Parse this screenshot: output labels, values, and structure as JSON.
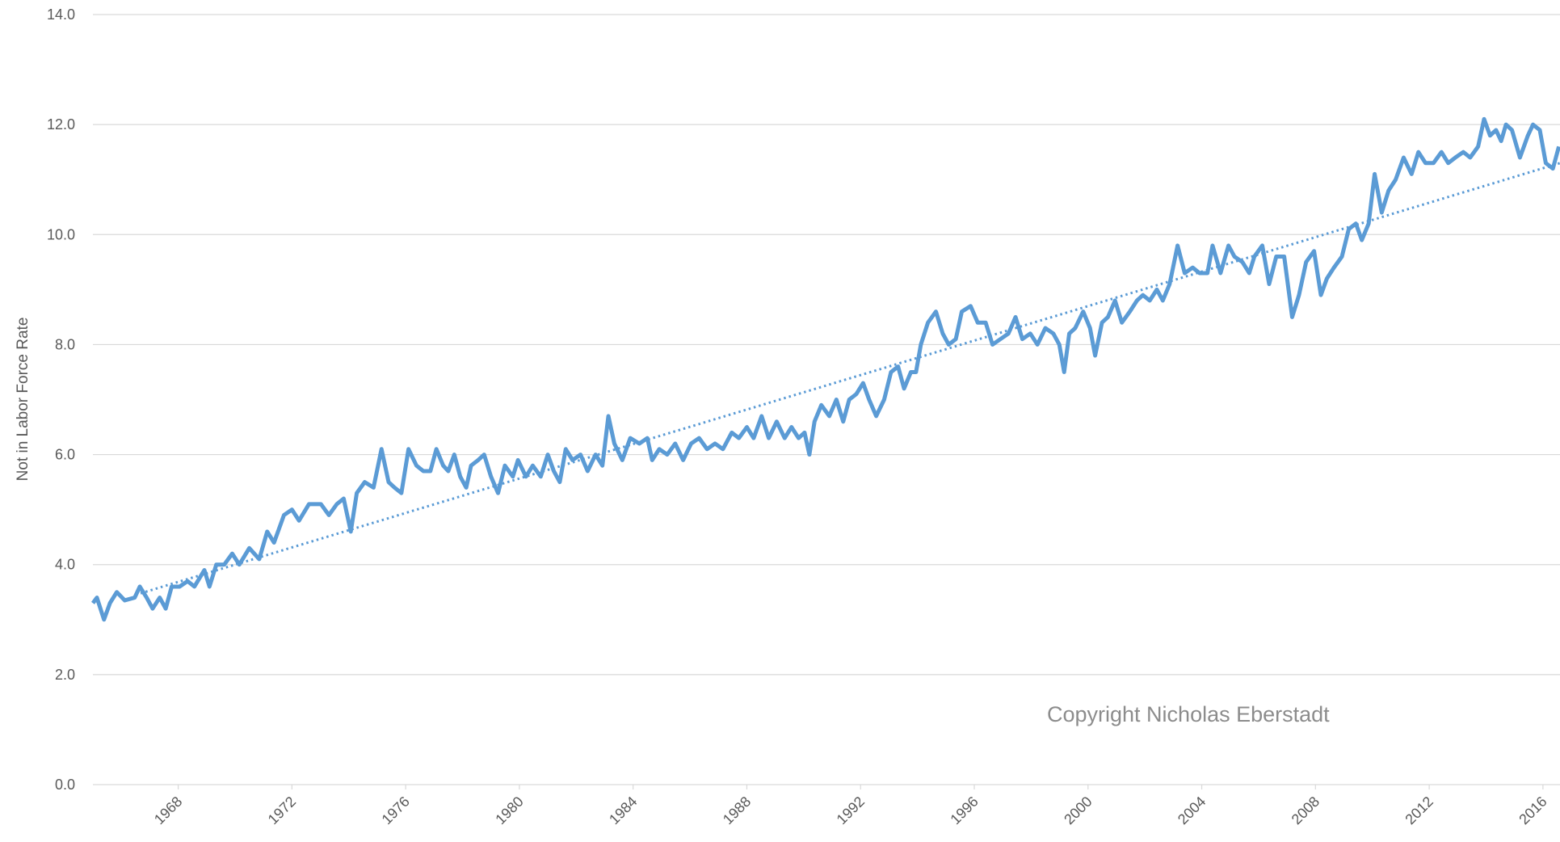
{
  "chart_data": {
    "type": "line",
    "y_label": "Not in Labor Force Rate",
    "annotation": "Copyright Nicholas Eberstadt",
    "xlim": [
      1965,
      2016.6
    ],
    "xticks": [
      1968,
      1972,
      1976,
      1980,
      1984,
      1988,
      1992,
      1996,
      2000,
      2004,
      2008,
      2012,
      2016
    ],
    "ylim": [
      0,
      14
    ],
    "yticks": [
      {
        "value": 0,
        "label": "0.0"
      },
      {
        "value": 2,
        "label": "2.0"
      },
      {
        "value": 4,
        "label": "4.0"
      },
      {
        "value": 6,
        "label": "6.0"
      },
      {
        "value": 8,
        "label": "8.0"
      },
      {
        "value": 10,
        "label": "10.0"
      },
      {
        "value": 12,
        "label": "12.0"
      },
      {
        "value": 14,
        "label": "14.0"
      }
    ],
    "grid": true,
    "series": [
      {
        "color": "#5b9bd5",
        "style": "solid",
        "x": [
          1965.0,
          1965.14,
          1965.39,
          1965.6,
          1965.84,
          1966.12,
          1966.47,
          1966.65,
          1966.89,
          1967.1,
          1967.35,
          1967.56,
          1967.77,
          1968.05,
          1968.33,
          1968.57,
          1968.92,
          1969.1,
          1969.34,
          1969.62,
          1969.9,
          1970.15,
          1970.5,
          1970.85,
          1971.13,
          1971.37,
          1971.72,
          1972.0,
          1972.25,
          1972.6,
          1973.02,
          1973.3,
          1973.58,
          1973.82,
          1974.07,
          1974.28,
          1974.56,
          1974.87,
          1975.15,
          1975.4,
          1975.61,
          1975.85,
          1976.1,
          1976.38,
          1976.62,
          1976.87,
          1977.08,
          1977.32,
          1977.5,
          1977.71,
          1977.92,
          1978.13,
          1978.3,
          1978.55,
          1978.76,
          1979.0,
          1979.25,
          1979.49,
          1979.77,
          1979.95,
          1980.23,
          1980.47,
          1980.75,
          1981.0,
          1981.21,
          1981.42,
          1981.63,
          1981.87,
          1982.15,
          1982.4,
          1982.68,
          1982.92,
          1983.13,
          1983.34,
          1983.62,
          1983.9,
          1984.22,
          1984.5,
          1984.67,
          1984.92,
          1985.2,
          1985.48,
          1985.76,
          1986.04,
          1986.32,
          1986.6,
          1986.88,
          1987.16,
          1987.47,
          1987.72,
          1988.0,
          1988.24,
          1988.52,
          1988.77,
          1989.05,
          1989.33,
          1989.57,
          1989.82,
          1990.03,
          1990.2,
          1990.38,
          1990.62,
          1990.9,
          1991.15,
          1991.39,
          1991.6,
          1991.85,
          1992.09,
          1992.3,
          1992.55,
          1992.83,
          1993.07,
          1993.32,
          1993.53,
          1993.77,
          1993.95,
          1994.12,
          1994.37,
          1994.65,
          1994.89,
          1995.1,
          1995.35,
          1995.56,
          1995.87,
          1996.12,
          1996.4,
          1996.64,
          1996.92,
          1997.2,
          1997.45,
          1997.69,
          1997.97,
          1998.22,
          1998.5,
          1998.78,
          1998.99,
          1999.16,
          1999.34,
          1999.55,
          1999.83,
          2000.07,
          2000.25,
          2000.49,
          2000.7,
          2000.95,
          2001.19,
          2001.47,
          2001.72,
          2001.93,
          2002.17,
          2002.42,
          2002.63,
          2002.87,
          2003.15,
          2003.4,
          2003.68,
          2003.92,
          2004.2,
          2004.38,
          2004.66,
          2004.94,
          2005.15,
          2005.43,
          2005.67,
          2005.85,
          2006.13,
          2006.37,
          2006.62,
          2006.9,
          2007.18,
          2007.42,
          2007.67,
          2007.95,
          2008.19,
          2008.4,
          2008.65,
          2008.93,
          2009.17,
          2009.42,
          2009.63,
          2009.87,
          2010.08,
          2010.33,
          2010.57,
          2010.82,
          2011.1,
          2011.38,
          2011.62,
          2011.87,
          2012.15,
          2012.43,
          2012.67,
          2012.92,
          2013.2,
          2013.44,
          2013.72,
          2013.93,
          2014.14,
          2014.35,
          2014.53,
          2014.7,
          2014.91,
          2015.19,
          2015.47,
          2015.65,
          2015.89,
          2016.1,
          2016.35,
          2016.56
        ],
        "values": [
          3.3,
          3.4,
          3.0,
          3.3,
          3.5,
          3.35,
          3.4,
          3.6,
          3.4,
          3.2,
          3.4,
          3.2,
          3.6,
          3.6,
          3.7,
          3.6,
          3.9,
          3.6,
          4.0,
          4.0,
          4.2,
          4.0,
          4.3,
          4.1,
          4.6,
          4.4,
          4.9,
          5.0,
          4.8,
          5.1,
          5.1,
          4.9,
          5.1,
          5.2,
          4.6,
          5.3,
          5.5,
          5.4,
          6.1,
          5.5,
          5.4,
          5.3,
          6.1,
          5.8,
          5.7,
          5.7,
          6.1,
          5.8,
          5.7,
          6.0,
          5.6,
          5.4,
          5.8,
          5.9,
          6.0,
          5.6,
          5.3,
          5.8,
          5.6,
          5.9,
          5.6,
          5.8,
          5.6,
          6.0,
          5.7,
          5.5,
          6.1,
          5.9,
          6.0,
          5.7,
          6.0,
          5.8,
          6.7,
          6.2,
          5.9,
          6.3,
          6.2,
          6.3,
          5.9,
          6.1,
          6.0,
          6.2,
          5.9,
          6.2,
          6.3,
          6.1,
          6.2,
          6.1,
          6.4,
          6.3,
          6.5,
          6.3,
          6.7,
          6.3,
          6.6,
          6.3,
          6.5,
          6.3,
          6.4,
          6.0,
          6.6,
          6.9,
          6.7,
          7.0,
          6.6,
          7.0,
          7.1,
          7.3,
          7.0,
          6.7,
          7.0,
          7.5,
          7.6,
          7.2,
          7.5,
          7.5,
          8.0,
          8.4,
          8.6,
          8.2,
          8.0,
          8.1,
          8.6,
          8.7,
          8.4,
          8.4,
          8.0,
          8.1,
          8.2,
          8.5,
          8.1,
          8.2,
          8.0,
          8.3,
          8.2,
          8.0,
          7.5,
          8.2,
          8.3,
          8.6,
          8.3,
          7.8,
          8.4,
          8.5,
          8.8,
          8.4,
          8.6,
          8.8,
          8.9,
          8.8,
          9.0,
          8.8,
          9.1,
          9.8,
          9.3,
          9.4,
          9.3,
          9.3,
          9.8,
          9.3,
          9.8,
          9.6,
          9.5,
          9.3,
          9.6,
          9.8,
          9.1,
          9.6,
          9.6,
          8.5,
          8.9,
          9.5,
          9.7,
          8.9,
          9.2,
          9.4,
          9.6,
          10.1,
          10.2,
          9.9,
          10.2,
          11.1,
          10.4,
          10.8,
          11.0,
          11.4,
          11.1,
          11.5,
          11.3,
          11.3,
          11.5,
          11.3,
          11.4,
          11.5,
          11.4,
          11.6,
          12.1,
          11.8,
          11.9,
          11.7,
          12.0,
          11.9,
          11.4,
          11.8,
          12.0,
          11.9,
          11.3,
          11.2,
          11.6
        ]
      },
      {
        "color": "#5b9bd5",
        "style": "dotted",
        "x": [
          1966.5,
          2016.6
        ],
        "values": [
          3.45,
          11.3
        ]
      }
    ]
  }
}
